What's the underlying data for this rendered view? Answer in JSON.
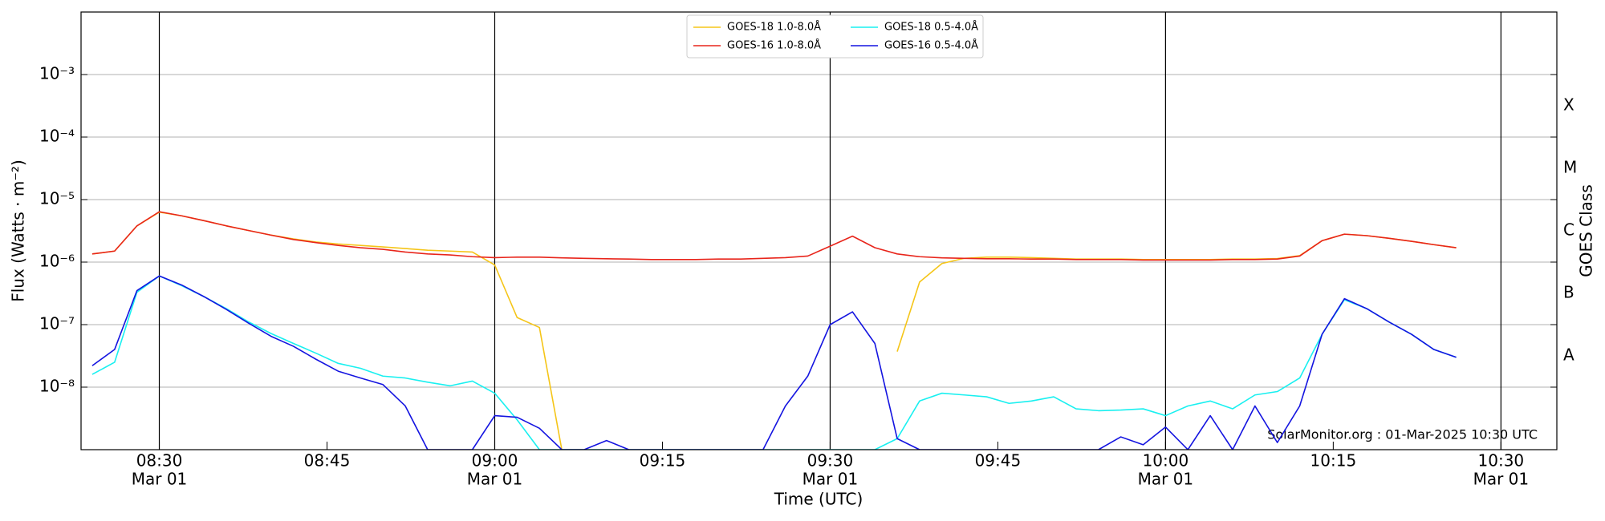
{
  "chart_data": {
    "type": "line",
    "xlabel": "Time (UTC)",
    "ylabel": "Flux (Watts · m⁻²)",
    "y2label": "GOES Class",
    "annotation": "SolarMonitor.org : 01-Mar-2025 10:30 UTC",
    "ylog": true,
    "ygrid": true,
    "legend": "upper center",
    "xlim": [
      "08:23",
      "10:35"
    ],
    "xticks": [
      {
        "value": "08:30",
        "label": [
          "08:30",
          "Mar 01"
        ]
      },
      "08:45",
      {
        "value": "09:00",
        "label": [
          "09:00",
          "Mar 01"
        ]
      },
      "09:15",
      {
        "value": "09:30",
        "label": [
          "09:30",
          "Mar 01"
        ]
      },
      "09:45",
      {
        "value": "10:00",
        "label": [
          "10:00",
          "Mar 01"
        ]
      },
      "10:15",
      {
        "value": "10:30",
        "label": [
          "10:30",
          "Mar 01"
        ]
      }
    ],
    "ylim": [
      1e-09,
      0.01
    ],
    "yticks": [
      {
        "value": 1e-08,
        "label": "10⁻⁸"
      },
      {
        "value": 1e-07,
        "label": "10⁻⁷"
      },
      {
        "value": 1e-06,
        "label": "10⁻⁶"
      },
      {
        "value": 1e-05,
        "label": "10⁻⁵"
      },
      {
        "value": 0.0001,
        "label": "10⁻⁴"
      },
      {
        "value": 0.001,
        "label": "10⁻³"
      }
    ],
    "y2lim": [
      1e-09,
      0.01
    ],
    "y2ticks": [
      {
        "value": 3.16e-08,
        "label": "A"
      },
      {
        "value": 3.16e-07,
        "label": "B"
      },
      {
        "value": 3.16e-06,
        "label": "C"
      },
      {
        "value": 3.16e-05,
        "label": "M"
      },
      {
        "value": 0.000316,
        "label": "X"
      }
    ],
    "x": [
      "08:24",
      "08:26",
      "08:28",
      "08:30",
      "08:32",
      "08:34",
      "08:36",
      "08:38",
      "08:40",
      "08:42",
      "08:44",
      "08:46",
      "08:48",
      "08:50",
      "08:52",
      "08:54",
      "08:56",
      "08:58",
      "09:00",
      "09:02",
      "09:04",
      "09:06",
      "09:08",
      "09:10",
      "09:12",
      "09:14",
      "09:16",
      "09:18",
      "09:20",
      "09:22",
      "09:24",
      "09:26",
      "09:28",
      "09:30",
      "09:32",
      "09:34",
      "09:36",
      "09:38",
      "09:40",
      "09:42",
      "09:44",
      "09:46",
      "09:48",
      "09:50",
      "09:52",
      "09:54",
      "09:56",
      "09:58",
      "10:00",
      "10:02",
      "10:04",
      "10:06",
      "10:08",
      "10:10",
      "10:12",
      "10:14",
      "10:16",
      "10:18",
      "10:20",
      "10:22",
      "10:24",
      "10:26"
    ],
    "series": [
      {
        "name": "GOES-18 1.0-8.0Å",
        "color": "#f5c518",
        "values": [
          1.35e-06,
          1.5e-06,
          3.8e-06,
          6.3e-06,
          5.5e-06,
          4.6e-06,
          3.8e-06,
          3.2e-06,
          2.7e-06,
          2.35e-06,
          2.1e-06,
          1.95e-06,
          1.85e-06,
          1.75e-06,
          1.65e-06,
          1.55e-06,
          1.5e-06,
          1.45e-06,
          9e-07,
          1.3e-07,
          9e-08,
          1e-09,
          null,
          null,
          null,
          null,
          null,
          null,
          null,
          null,
          null,
          null,
          null,
          null,
          null,
          null,
          3.7e-08,
          4.8e-07,
          9.5e-07,
          1.15e-06,
          1.2e-06,
          1.2e-06,
          1.18e-06,
          1.15e-06,
          1.12e-06,
          1.12e-06,
          1.12e-06,
          1.1e-06,
          1.1e-06,
          1.1e-06,
          1.1e-06,
          1.12e-06,
          1.12e-06,
          1.14e-06,
          1.27e-06,
          2.2e-06,
          2.8e-06,
          2.65e-06,
          2.4e-06,
          2.15e-06,
          1.9e-06,
          1.7e-06
        ]
      },
      {
        "name": "GOES-16 1.0-8.0Å",
        "color": "#e8251b",
        "values": [
          1.35e-06,
          1.5e-06,
          3.8e-06,
          6.4e-06,
          5.5e-06,
          4.6e-06,
          3.8e-06,
          3.2e-06,
          2.7e-06,
          2.3e-06,
          2.05e-06,
          1.85e-06,
          1.7e-06,
          1.6e-06,
          1.45e-06,
          1.35e-06,
          1.3e-06,
          1.22e-06,
          1.18e-06,
          1.2e-06,
          1.2e-06,
          1.17e-06,
          1.15e-06,
          1.13e-06,
          1.12e-06,
          1.1e-06,
          1.1e-06,
          1.1e-06,
          1.12e-06,
          1.12e-06,
          1.15e-06,
          1.18e-06,
          1.25e-06,
          1.8e-06,
          2.6e-06,
          1.7e-06,
          1.35e-06,
          1.22e-06,
          1.17e-06,
          1.15e-06,
          1.13e-06,
          1.13e-06,
          1.12e-06,
          1.12e-06,
          1.1e-06,
          1.1e-06,
          1.1e-06,
          1.08e-06,
          1.08e-06,
          1.08e-06,
          1.08e-06,
          1.1e-06,
          1.1e-06,
          1.12e-06,
          1.25e-06,
          2.2e-06,
          2.8e-06,
          2.65e-06,
          2.4e-06,
          2.15e-06,
          1.9e-06,
          1.7e-06
        ]
      },
      {
        "name": "GOES-18 0.5-4.0Å",
        "color": "#19f0f0",
        "values": [
          1.6e-08,
          2.5e-08,
          3.3e-07,
          6e-07,
          4.2e-07,
          2.8e-07,
          1.8e-07,
          1.1e-07,
          7.2e-08,
          5e-08,
          3.5e-08,
          2.4e-08,
          2e-08,
          1.5e-08,
          1.4e-08,
          1.2e-08,
          1.05e-08,
          1.25e-08,
          8e-09,
          3e-09,
          1e-09,
          1e-09,
          1e-09,
          1e-09,
          1e-09,
          1e-09,
          1e-09,
          1e-09,
          1e-09,
          1e-09,
          1e-09,
          1e-09,
          1e-09,
          1e-09,
          1e-09,
          1e-09,
          1.5e-09,
          6e-09,
          8e-09,
          7.5e-09,
          7e-09,
          5.5e-09,
          6e-09,
          7e-09,
          4.5e-09,
          4.2e-09,
          4.3e-09,
          4.5e-09,
          3.5e-09,
          5e-09,
          6e-09,
          4.5e-09,
          7.5e-09,
          8.5e-09,
          1.4e-08,
          7e-08,
          2.5e-07,
          1.8e-07,
          1.1e-07,
          7e-08,
          4e-08,
          3e-08
        ]
      },
      {
        "name": "GOES-16 0.5-4.0Å",
        "color": "#1414e0",
        "values": [
          2.2e-08,
          4e-08,
          3.5e-07,
          6e-07,
          4.3e-07,
          2.8e-07,
          1.75e-07,
          1.05e-07,
          6.5e-08,
          4.5e-08,
          2.8e-08,
          1.8e-08,
          1.4e-08,
          1.1e-08,
          5e-09,
          1e-09,
          1e-09,
          1e-09,
          3.5e-09,
          3.3e-09,
          2.2e-09,
          1e-09,
          1e-09,
          1.4e-09,
          1e-09,
          1e-09,
          1e-09,
          1e-09,
          1e-09,
          1e-09,
          1e-09,
          5e-09,
          1.5e-08,
          1e-07,
          1.6e-07,
          5e-08,
          1.5e-09,
          1e-09,
          1e-09,
          1e-09,
          1e-09,
          1e-09,
          1e-09,
          1e-09,
          1e-09,
          1e-09,
          1.6e-09,
          1.2e-09,
          2.3e-09,
          1e-09,
          3.5e-09,
          1e-09,
          5e-09,
          1.3e-09,
          5e-09,
          7e-08,
          2.6e-07,
          1.8e-07,
          1.1e-07,
          7e-08,
          4e-08,
          3e-08
        ]
      }
    ]
  }
}
